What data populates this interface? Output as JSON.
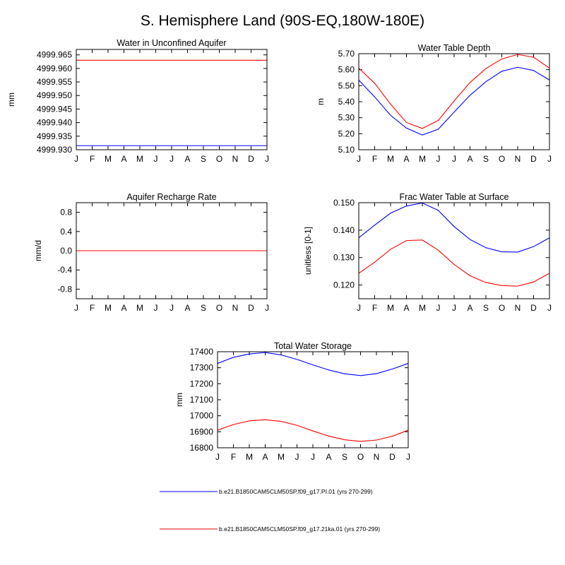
{
  "figure": {
    "title": "S. Hemisphere Land (90S-EQ,180W-180E)"
  },
  "legend": [
    {
      "label": "b.e21.B1850CAM5CLM50SP.f09_g17.PI.01 (yrs 270-299)",
      "color": "#0000ff"
    },
    {
      "label": "b.e21.B1850CAM5CLM50SP.f09_g17.21ka.01 (yrs 270-299)",
      "color": "#ff0000"
    }
  ],
  "chart_data": [
    {
      "type": "line",
      "title": "Water in Unconfined Aquifer",
      "ylabel": "mm",
      "xlabel": "",
      "categories": [
        "J",
        "F",
        "M",
        "A",
        "M",
        "J",
        "J",
        "A",
        "S",
        "O",
        "N",
        "D",
        "J"
      ],
      "ylim": [
        4999.93,
        4999.967
      ],
      "yticks": [
        4999.93,
        4999.935,
        4999.94,
        4999.945,
        4999.95,
        4999.955,
        4999.96,
        4999.965
      ],
      "yticklabels": [
        "4999.930",
        "4999.935",
        "4999.940",
        "4999.945",
        "4999.950",
        "4999.955",
        "4999.960",
        "4999.965"
      ],
      "series": [
        {
          "name": "b.e21.B1850CAM5CLM50SP.f09_g17.PI.01 (yrs 270-299)",
          "color": "#0000ff",
          "values": [
            4999.9315,
            4999.9315,
            4999.9315,
            4999.9315,
            4999.9315,
            4999.9315,
            4999.9315,
            4999.9315,
            4999.9315,
            4999.9315,
            4999.9315,
            4999.9315,
            4999.9315
          ]
        },
        {
          "name": "b.e21.B1850CAM5CLM50SP.f09_g17.21ka.01 (yrs 270-299)",
          "color": "#ff0000",
          "values": [
            4999.963,
            4999.963,
            4999.963,
            4999.963,
            4999.963,
            4999.963,
            4999.963,
            4999.963,
            4999.963,
            4999.963,
            4999.963,
            4999.963,
            4999.963
          ]
        }
      ]
    },
    {
      "type": "line",
      "title": "Water Table Depth",
      "ylabel": "m",
      "xlabel": "",
      "categories": [
        "J",
        "F",
        "M",
        "A",
        "M",
        "J",
        "J",
        "A",
        "S",
        "O",
        "N",
        "D",
        "J"
      ],
      "ylim": [
        5.1,
        5.7
      ],
      "yticks": [
        5.1,
        5.2,
        5.3,
        5.4,
        5.5,
        5.6,
        5.7
      ],
      "yticklabels": [
        "5.10",
        "5.20",
        "5.30",
        "5.40",
        "5.50",
        "5.60",
        "5.70"
      ],
      "series": [
        {
          "name": "b.e21.B1850CAM5CLM50SP.f09_g17.PI.01 (yrs 270-299)",
          "color": "#0000ff",
          "values": [
            5.535,
            5.43,
            5.315,
            5.235,
            5.192,
            5.228,
            5.335,
            5.44,
            5.525,
            5.59,
            5.615,
            5.595,
            5.535
          ]
        },
        {
          "name": "b.e21.B1850CAM5CLM50SP.f09_g17.21ka.01 (yrs 270-299)",
          "color": "#ff0000",
          "values": [
            5.61,
            5.515,
            5.385,
            5.27,
            5.233,
            5.283,
            5.405,
            5.52,
            5.607,
            5.667,
            5.695,
            5.678,
            5.61
          ]
        }
      ]
    },
    {
      "type": "line",
      "title": "Aquifer Recharge Rate",
      "ylabel": "mm/d",
      "xlabel": "",
      "categories": [
        "J",
        "F",
        "M",
        "A",
        "M",
        "J",
        "J",
        "A",
        "S",
        "O",
        "N",
        "D",
        "J"
      ],
      "ylim": [
        -1.0,
        1.0
      ],
      "yticks": [
        -0.8,
        -0.4,
        0.0,
        0.4,
        0.8
      ],
      "yticklabels": [
        "-0.8",
        "-0.4",
        "0.0",
        "0.4",
        "0.8"
      ],
      "series": [
        {
          "name": "b.e21.B1850CAM5CLM50SP.f09_g17.PI.01 (yrs 270-299)",
          "color": "#0000ff",
          "values": [
            0,
            0,
            0,
            0,
            0,
            0,
            0,
            0,
            0,
            0,
            0,
            0,
            0
          ]
        },
        {
          "name": "b.e21.B1850CAM5CLM50SP.f09_g17.21ka.01 (yrs 270-299)",
          "color": "#ff0000",
          "values": [
            0,
            0,
            0,
            0,
            0,
            0,
            0,
            0,
            0,
            0,
            0,
            0,
            0
          ]
        }
      ]
    },
    {
      "type": "line",
      "title": "Frac Water Table at Surface",
      "ylabel": "unitless [0-1]",
      "xlabel": "",
      "categories": [
        "J",
        "F",
        "M",
        "A",
        "M",
        "J",
        "J",
        "A",
        "S",
        "O",
        "N",
        "D",
        "J"
      ],
      "ylim": [
        0.115,
        0.15
      ],
      "yticks": [
        0.12,
        0.13,
        0.14,
        0.15
      ],
      "yticklabels": [
        "0.120",
        "0.130",
        "0.140",
        "0.150"
      ],
      "series": [
        {
          "name": "b.e21.B1850CAM5CLM50SP.f09_g17.PI.01 (yrs 270-299)",
          "color": "#0000ff",
          "values": [
            0.1372,
            0.1418,
            0.1462,
            0.1488,
            0.1499,
            0.1472,
            0.1413,
            0.1366,
            0.1336,
            0.1321,
            0.132,
            0.134,
            0.1372
          ]
        },
        {
          "name": "b.e21.B1850CAM5CLM50SP.f09_g17.21ka.01 (yrs 270-299)",
          "color": "#ff0000",
          "values": [
            0.1243,
            0.1283,
            0.133,
            0.1362,
            0.1364,
            0.1327,
            0.1275,
            0.1234,
            0.1209,
            0.1198,
            0.1196,
            0.1211,
            0.1243
          ]
        }
      ]
    },
    {
      "type": "line",
      "title": "Total Water Storage",
      "ylabel": "mm",
      "xlabel": "",
      "categories": [
        "J",
        "F",
        "M",
        "A",
        "M",
        "J",
        "J",
        "A",
        "S",
        "O",
        "N",
        "D",
        "J"
      ],
      "ylim": [
        16800,
        17400
      ],
      "yticks": [
        16800,
        16900,
        17000,
        17100,
        17200,
        17300,
        17400
      ],
      "yticklabels": [
        "16800",
        "16900",
        "17000",
        "17100",
        "17200",
        "17300",
        "17400"
      ],
      "series": [
        {
          "name": "b.e21.B1850CAM5CLM50SP.f09_g17.PI.01 (yrs 270-299)",
          "color": "#0000ff",
          "values": [
            17327,
            17365,
            17386,
            17395,
            17380,
            17352,
            17318,
            17286,
            17262,
            17251,
            17263,
            17292,
            17327
          ]
        },
        {
          "name": "b.e21.B1850CAM5CLM50SP.f09_g17.21ka.01 (yrs 270-299)",
          "color": "#ff0000",
          "values": [
            16910,
            16945,
            16968,
            16975,
            16965,
            16940,
            16905,
            16873,
            16850,
            16840,
            16848,
            16872,
            16910
          ]
        }
      ]
    }
  ]
}
